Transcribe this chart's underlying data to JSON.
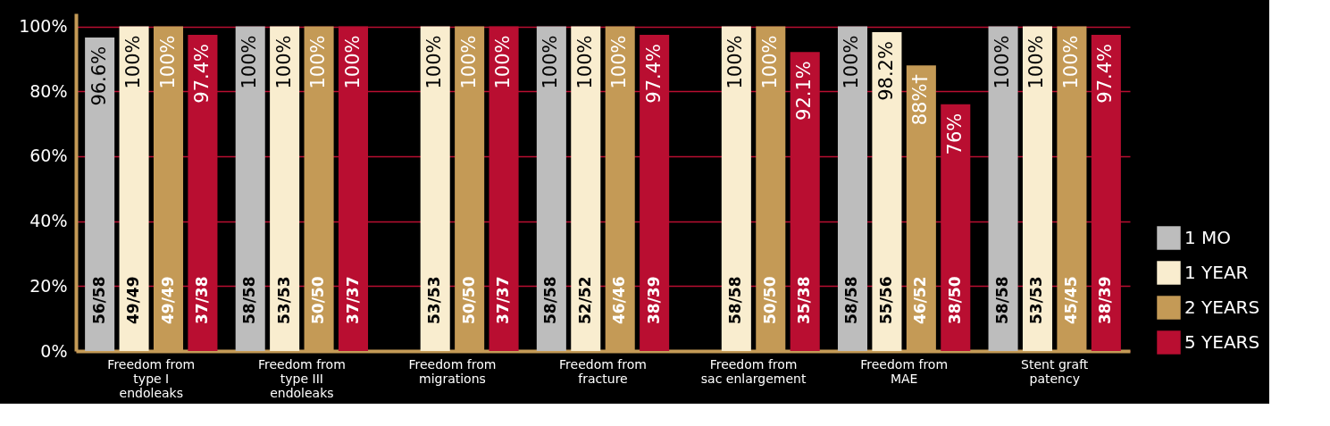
{
  "chart_data": {
    "type": "bar",
    "categories": [
      "Freedom from\ntype I\nendoleaks",
      "Freedom from\ntype III\nendoleaks",
      "Freedom from\nmigrations",
      "Freedom from\nfracture",
      "Freedom from\nsac enlargement",
      "Freedom from\nMAE",
      "Stent graft\npatency"
    ],
    "series": [
      {
        "name": "1 MO",
        "color": "#bdbdbd",
        "values": [
          96.6,
          100,
          null,
          100,
          null,
          100,
          100
        ],
        "value_labels": [
          [
            "96.6%",
            "56/58"
          ],
          [
            "100%",
            "58/58"
          ],
          null,
          [
            "100%",
            "58/58"
          ],
          null,
          [
            "100%",
            "58/58"
          ],
          [
            "100%",
            "58/58"
          ]
        ]
      },
      {
        "name": "1 YEAR",
        "color": "#f9edcf",
        "values": [
          100,
          100,
          100,
          100,
          100,
          98.2,
          100
        ],
        "value_labels": [
          [
            "100%",
            "49/49"
          ],
          [
            "100%",
            "53/53"
          ],
          [
            "100%",
            "53/53"
          ],
          [
            "100%",
            "52/52"
          ],
          [
            "100%",
            "58/58"
          ],
          [
            "98.2%",
            "55/56"
          ],
          [
            "100%",
            "53/53"
          ]
        ]
      },
      {
        "name": "2 YEARS",
        "color": "#c49a56",
        "values": [
          100,
          100,
          100,
          100,
          100,
          88,
          100
        ],
        "value_labels": [
          [
            "100%",
            "49/49"
          ],
          [
            "100%",
            "50/50"
          ],
          [
            "100%",
            "50/50"
          ],
          [
            "100%",
            "46/46"
          ],
          [
            "100%",
            "50/50"
          ],
          [
            "88%†",
            "46/52"
          ],
          [
            "100%",
            "45/45"
          ]
        ]
      },
      {
        "name": "5 YEARS",
        "color": "#b90e31",
        "values": [
          97.4,
          100,
          100,
          97.4,
          92.1,
          76,
          97.4
        ],
        "value_labels": [
          [
            "97.4%",
            "37/38"
          ],
          [
            "100%",
            "37/37"
          ],
          [
            "100%",
            "37/37"
          ],
          [
            "97.4%",
            "38/39"
          ],
          [
            "92.1%",
            "35/38"
          ],
          [
            "76%",
            "38/50"
          ],
          [
            "97.4%",
            "38/39"
          ]
        ]
      }
    ],
    "ylim": [
      0,
      104
    ],
    "yticks": [
      {
        "value": 0,
        "label": "0%"
      },
      {
        "value": 20,
        "label": "20%"
      },
      {
        "value": 40,
        "label": "40%"
      },
      {
        "value": 60,
        "label": "60%"
      },
      {
        "value": 80,
        "label": "80%"
      },
      {
        "value": 100,
        "label": "100%"
      }
    ],
    "grid": "y",
    "legend": "bottom right"
  }
}
